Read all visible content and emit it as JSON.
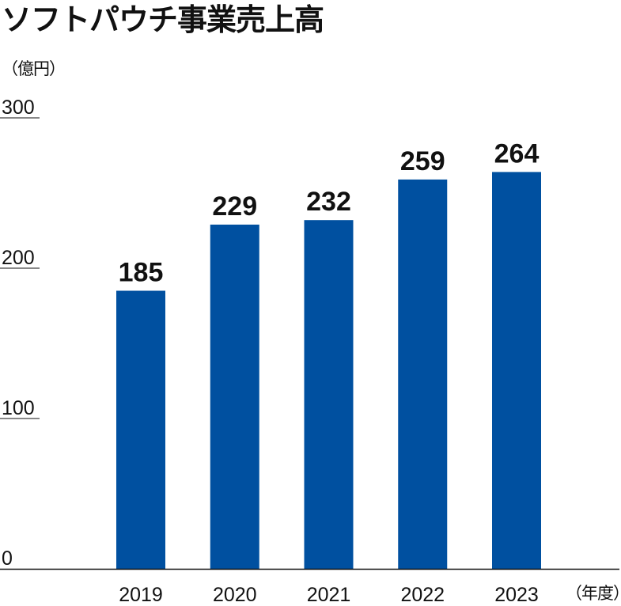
{
  "chart_data": {
    "type": "bar",
    "title": "ソフトパウチ事業売上高",
    "ylabel": "（億円）",
    "xlabel": "（年度）",
    "categories": [
      "2019",
      "2020",
      "2021",
      "2022",
      "2023"
    ],
    "values": [
      185,
      229,
      232,
      259,
      264
    ],
    "data_labels": [
      "185",
      "229",
      "232",
      "259",
      "264"
    ],
    "yticks": [
      {
        "value": 0,
        "label": "0"
      },
      {
        "value": 100,
        "label": "100"
      },
      {
        "value": 200,
        "label": "200"
      },
      {
        "value": 300,
        "label": "300"
      }
    ],
    "ylim": [
      0,
      300
    ],
    "grid": false,
    "bar_color": "#0050A0"
  }
}
